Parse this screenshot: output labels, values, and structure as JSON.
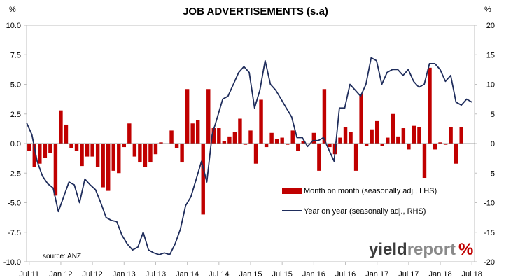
{
  "chart_data": {
    "type": "bar",
    "title": "JOB ADVERTISEMENTS (s.a)",
    "left_unit": "%",
    "right_unit": "%",
    "x_tick_labels": [
      "Jul 11",
      "Jan 12",
      "Jul 12",
      "Jan 13",
      "Jul 13",
      "Jan 14",
      "Jul 14",
      "Jan 15",
      "Jul 15",
      "Jan 16",
      "Jul 16",
      "Jan 17",
      "Jul 17",
      "Jan 18",
      "Jul 18"
    ],
    "start_month": "Jul 11",
    "ylim_left": [
      -10,
      10
    ],
    "yticks_left": [
      "10.0",
      "7.5",
      "5.0",
      "2.5",
      "0.0",
      "-2.5",
      "-5.0",
      "-7.5",
      "-10.0"
    ],
    "ylim_right": [
      -20,
      20
    ],
    "yticks_right": [
      "20",
      "15",
      "10",
      "5",
      "0",
      "-5",
      "-10",
      "-15",
      "-20"
    ],
    "series": [
      {
        "name": "Month on month (seasonally adj., LHS)",
        "type": "bar",
        "axis": "left",
        "color": "#C00000",
        "values": [
          -0.6,
          -2.0,
          -1.7,
          -1.2,
          -0.8,
          -4.4,
          2.8,
          1.6,
          -0.4,
          -0.6,
          -1.9,
          -1.1,
          -1.1,
          -2.0,
          -3.7,
          -4.0,
          -2.3,
          -2.5,
          -0.3,
          1.7,
          -1.1,
          -1.6,
          -2.0,
          -1.6,
          -0.9,
          0.1,
          0.0,
          1.1,
          -0.4,
          -1.6,
          4.6,
          1.7,
          2.0,
          -6.0,
          4.6,
          1.3,
          1.3,
          0.2,
          0.6,
          1.0,
          2.1,
          -0.1,
          1.1,
          -1.7,
          3.7,
          -0.3,
          0.9,
          0.4,
          0.5,
          -0.1,
          1.1,
          -0.6,
          0.2,
          0.0,
          0.9,
          -2.3,
          4.6,
          -0.3,
          -0.9,
          0.5,
          1.4,
          1.0,
          -2.3,
          4.2,
          -0.2,
          1.2,
          1.9,
          -0.2,
          0.5,
          2.5,
          0.6,
          1.3,
          -0.5,
          1.5,
          1.4,
          -2.9,
          6.4,
          -0.5,
          0.1,
          -0.1,
          1.4,
          -1.7,
          1.4
        ],
        "bar_count": 83
      },
      {
        "name": "Year on year (seasonally adj., RHS)",
        "type": "line",
        "axis": "right",
        "color": "#1F2D5C",
        "values": [
          3.5,
          1.5,
          -3.0,
          -5.5,
          -6.8,
          -7.5,
          -11.5,
          -9.0,
          -6.5,
          -7.0,
          -10.0,
          -6.0,
          -7.0,
          -7.8,
          -10.0,
          -12.5,
          -13.0,
          -13.2,
          -15.5,
          -17.0,
          -18.0,
          -17.5,
          -15.0,
          -18.0,
          -18.5,
          -18.8,
          -18.5,
          -18.8,
          -17.0,
          -14.5,
          -10.5,
          -9.0,
          -6.0,
          -3.0,
          -6.5,
          1.5,
          4.5,
          7.5,
          8.0,
          10.0,
          12.0,
          13.0,
          12.0,
          6.0,
          9.0,
          14.0,
          10.0,
          9.0,
          7.5,
          6.0,
          4.5,
          1.0,
          1.0,
          -0.5,
          0.5,
          0.5,
          1.0,
          -1.0,
          -3.0,
          6.0,
          6.0,
          10.0,
          9.0,
          8.0,
          10.0,
          14.5,
          14.0,
          10.0,
          12.0,
          12.5,
          12.5,
          11.5,
          12.5,
          10.5,
          9.5,
          10.0,
          13.5,
          13.5,
          12.5,
          10.5,
          11.5,
          7.0,
          6.5,
          7.5,
          7.0
        ]
      }
    ],
    "legend_placement": "bottom-right",
    "grid": false,
    "source_text": "source: ANZ",
    "brand": {
      "part1": "yield",
      "part2": "report",
      "symbol": "%"
    }
  }
}
